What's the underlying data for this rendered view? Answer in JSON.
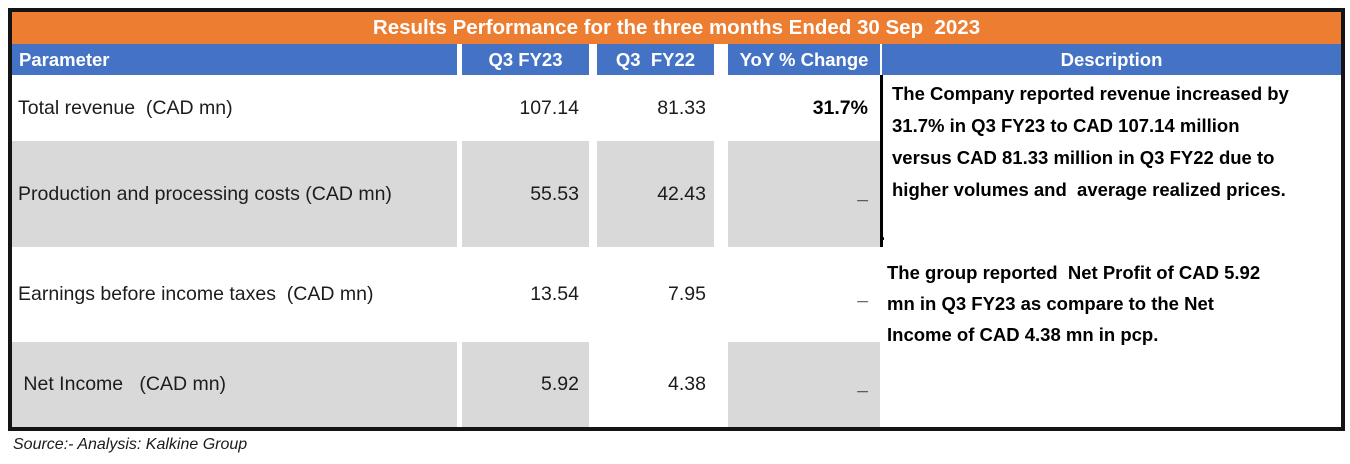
{
  "table": {
    "title": "Results Performance for the three months Ended 30 Sep  2023",
    "columns": [
      {
        "label": "Parameter"
      },
      {
        "label": "Q3 FY23"
      },
      {
        "label": "Q3  FY22"
      },
      {
        "label": "YoY % Change"
      },
      {
        "label": "Description"
      }
    ],
    "rows": [
      {
        "parameter": "Total revenue  (CAD mn)",
        "q3fy23": "107.14",
        "q3fy22": "81.33",
        "yoy": "31.7%"
      },
      {
        "parameter": "Production and processing costs (CAD mn)",
        "q3fy23": "55.53",
        "q3fy22": "42.43",
        "yoy": "_"
      },
      {
        "parameter": "Earnings before income taxes  (CAD mn)",
        "q3fy23": "13.54",
        "q3fy22": "7.95",
        "yoy": "_"
      },
      {
        "parameter": " Net Income   (CAD mn)",
        "q3fy23": "5.92",
        "q3fy22": "4.38",
        "yoy": "_"
      }
    ],
    "descriptions": [
      "The Company reported revenue increased by\n31.7% in Q3 FY23 to CAD 107.14 million\nversus CAD 81.33 million in Q3 FY22 due to\nhigher volumes and  average realized prices.",
      "The group reported  Net Profit of CAD 5.92\nmn in Q3 FY23 as compare to the Net\nIncome of CAD 4.38 mn in pcp."
    ],
    "stray_period": "."
  },
  "source_note": "Source:- Analysis: Kalkine Group",
  "colors": {
    "title_bar": "#ED7D31",
    "header_row": "#4472C4",
    "shaded_cell": "#D9D9D9",
    "border": "#141414"
  },
  "chart_data": {
    "type": "table",
    "title": "Results Performance for the three months Ended 30 Sep 2023",
    "columns": [
      "Parameter",
      "Q3 FY23",
      "Q3 FY22",
      "YoY % Change",
      "Description"
    ],
    "rows": [
      {
        "parameter": "Total revenue (CAD mn)",
        "q3_fy23": 107.14,
        "q3_fy22": 81.33,
        "yoy_pct_change": "31.7%"
      },
      {
        "parameter": "Production and processing costs (CAD mn)",
        "q3_fy23": 55.53,
        "q3_fy22": 42.43,
        "yoy_pct_change": "–"
      },
      {
        "parameter": "Earnings before income taxes (CAD mn)",
        "q3_fy23": 13.54,
        "q3_fy22": 7.95,
        "yoy_pct_change": "–"
      },
      {
        "parameter": "Net Income (CAD mn)",
        "q3_fy23": 5.92,
        "q3_fy22": 4.38,
        "yoy_pct_change": "–"
      }
    ],
    "descriptions": [
      "The Company reported revenue increased by 31.7% in Q3 FY23 to CAD 107.14 million versus CAD 81.33 million in Q3 FY22 due to higher volumes and average realized prices.",
      "The group reported Net Profit of CAD 5.92 mn in Q3 FY23 as compare to the Net Income of CAD 4.38 mn in pcp."
    ],
    "source": "Source:- Analysis: Kalkine Group"
  }
}
